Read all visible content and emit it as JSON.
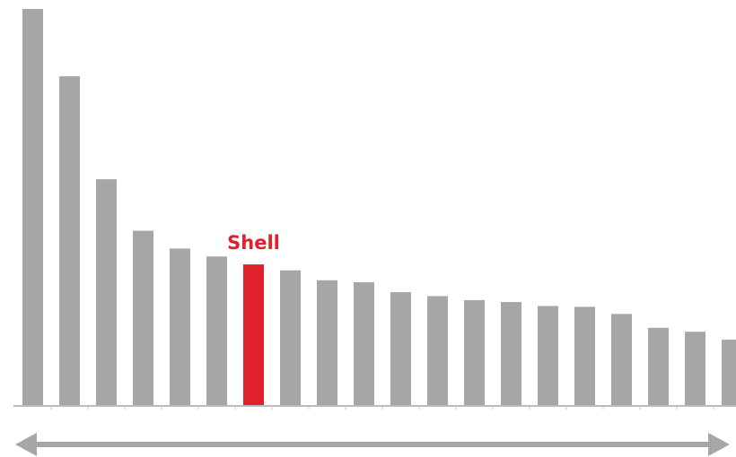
{
  "chart_data": {
    "type": "bar",
    "title": "",
    "xlabel": "",
    "ylabel": "",
    "ylim": [
      0,
      100
    ],
    "grid": false,
    "legend": "none",
    "highlight_label": "Shell",
    "highlight_index": 6,
    "values": [
      100,
      83,
      57,
      44,
      39.5,
      37.5,
      35.5,
      34,
      31.5,
      31,
      28.5,
      27.5,
      26.5,
      26,
      25,
      24.8,
      23,
      19.5,
      18.5,
      16.5
    ]
  },
  "colors": {
    "bar": "#a6a6a6",
    "highlight": "#e0202a",
    "axis": "#a6a6a6",
    "arrow": "#a6a6a6"
  }
}
